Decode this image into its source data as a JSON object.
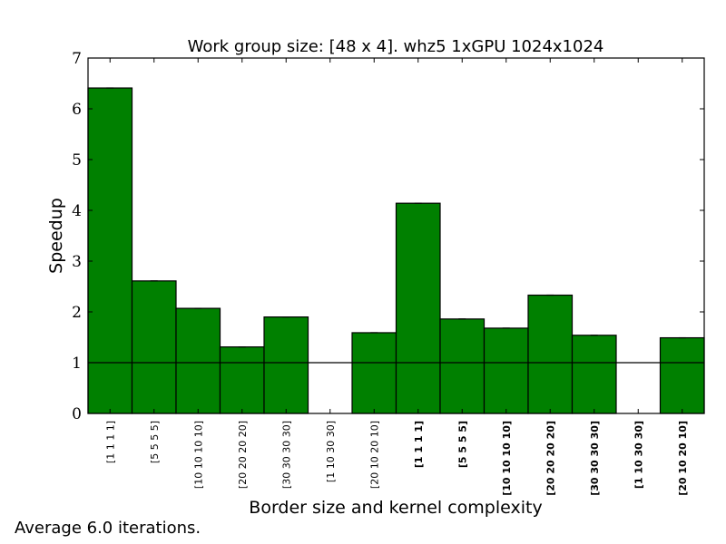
{
  "chart_data": {
    "type": "bar",
    "title": "Work group size: [48 x 4]. whz5 1xGPU 1024x1024",
    "xlabel": "Border size and kernel complexity",
    "ylabel": "Speedup",
    "ylim": [
      0,
      7
    ],
    "yticks": [
      "0",
      "1",
      "2",
      "3",
      "4",
      "5",
      "6",
      "7"
    ],
    "reference_line": 1,
    "categories": [
      "[1 1 1 1]",
      "[5 5 5 5]",
      "[10 10 10 10]",
      "[20 20 20 20]",
      "[30 30 30 30]",
      "[1 10 30 30]",
      "[20 10 20 10]",
      "[1 1 1 1]",
      "[5 5 5 5]",
      "[10 10 10 10]",
      "[20 20 20 20]",
      "[30 30 30 30]",
      "[1 10 30 30]",
      "[20 10 20 10]"
    ],
    "bold_categories": [
      false,
      false,
      false,
      false,
      false,
      false,
      false,
      true,
      true,
      true,
      true,
      true,
      true,
      true
    ],
    "values": [
      6.41,
      2.61,
      2.07,
      1.31,
      1.9,
      0.0,
      1.59,
      4.14,
      1.86,
      1.68,
      2.33,
      1.54,
      0.0,
      1.49
    ],
    "bar_color": "#008000",
    "grid": false,
    "footnote": "Average 6.0 iterations."
  }
}
